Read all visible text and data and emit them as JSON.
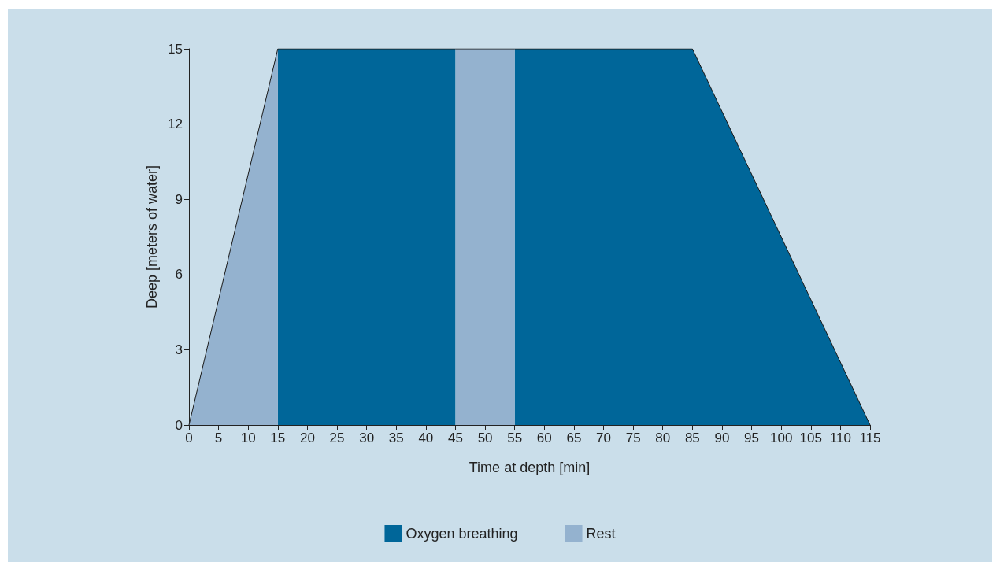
{
  "chart_data": {
    "type": "area",
    "xlabel": "Time at depth [min]",
    "ylabel": "Deep [meters of water]",
    "series": [
      {
        "name": "Oxygen breathing",
        "color": "#006699",
        "x": [
          15,
          45,
          50,
          55,
          85,
          115
        ],
        "values": [
          15,
          15,
          null,
          15,
          15,
          0
        ]
      },
      {
        "name": "Rest",
        "color": "#94b2cf",
        "x": [
          0,
          15,
          30,
          45,
          55
        ],
        "values": [
          0,
          15,
          null,
          15,
          15
        ]
      }
    ],
    "xlim": [
      0,
      115
    ],
    "xticks": [
      0,
      5,
      10,
      15,
      20,
      25,
      30,
      35,
      40,
      45,
      50,
      55,
      60,
      65,
      70,
      75,
      80,
      85,
      90,
      95,
      100,
      105,
      110,
      115
    ],
    "ylim": [
      0,
      15
    ],
    "yticks": [
      0,
      3,
      6,
      9,
      12,
      15
    ],
    "grid": false,
    "legend": "bottom",
    "marker": "none",
    "line_style": "solid"
  }
}
